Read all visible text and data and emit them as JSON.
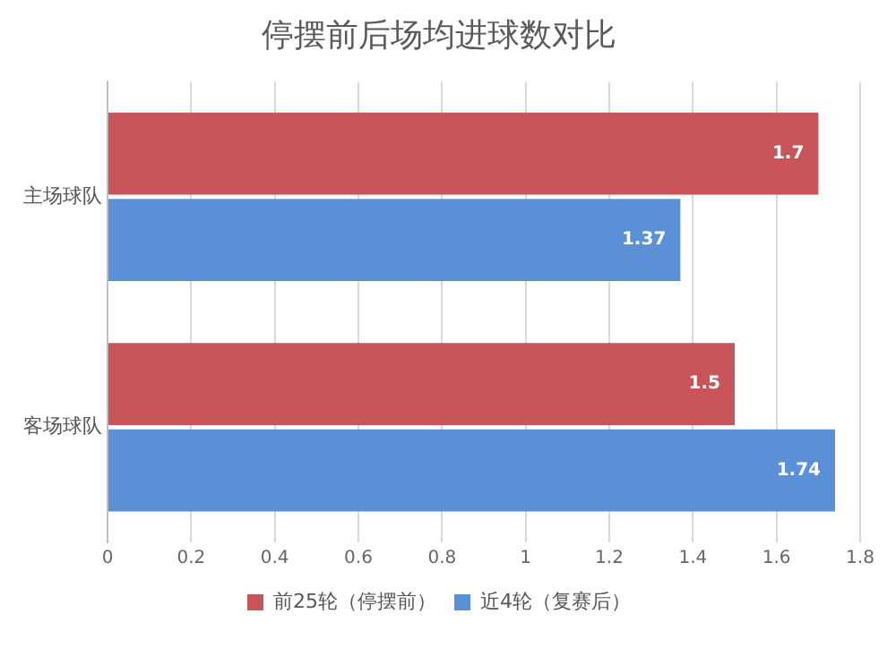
{
  "chart_data": {
    "type": "bar",
    "orientation": "horizontal",
    "title": "停摆前后场均进球数对比",
    "categories": [
      "主场球队",
      "客场球队"
    ],
    "series": [
      {
        "name": "前25轮（停摆前）",
        "color": "#c9545a",
        "values": [
          1.7,
          1.5
        ]
      },
      {
        "name": "近4轮（复赛后）",
        "color": "#5b8fd6",
        "values": [
          1.37,
          1.74
        ]
      }
    ],
    "xlim": [
      0,
      1.8
    ],
    "xticks": [
      0,
      0.2,
      0.4,
      0.6,
      0.8,
      1,
      1.2,
      1.4,
      1.6,
      1.8
    ],
    "grid": "x",
    "legend": "bottom",
    "data_labels": true
  }
}
